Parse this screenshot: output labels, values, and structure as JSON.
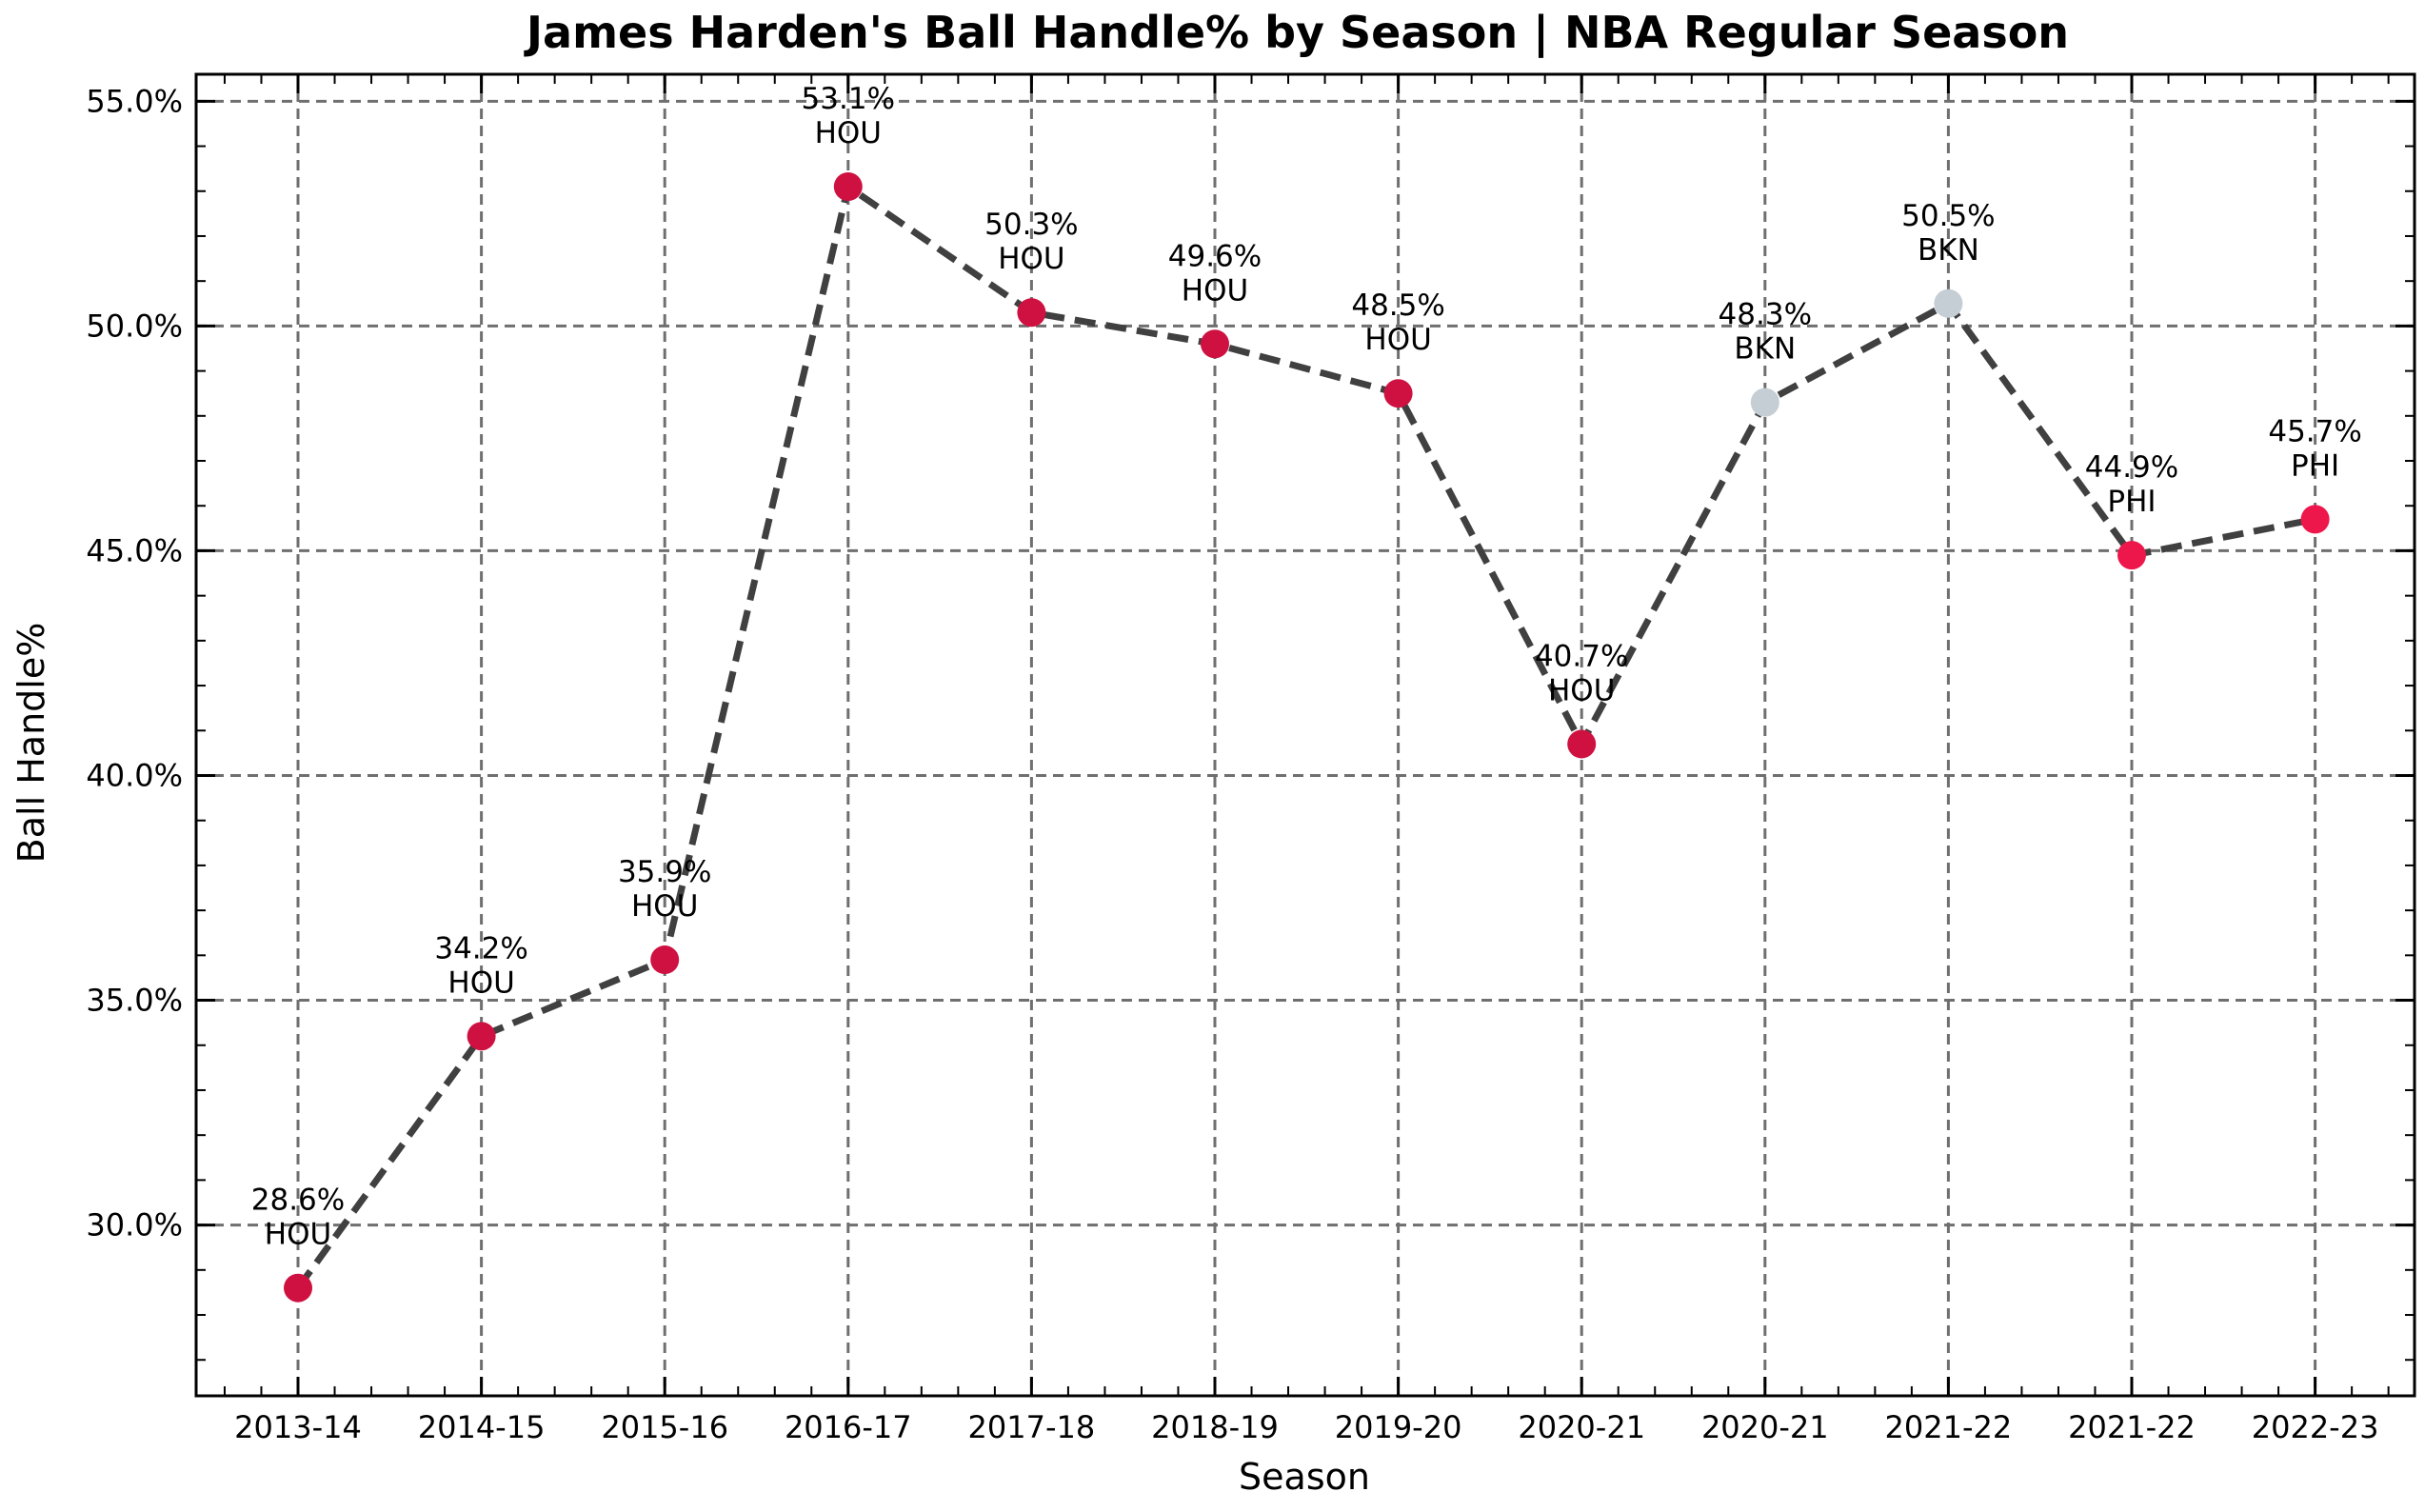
{
  "chart_data": {
    "type": "line",
    "title": "James Harden's Ball Handle% by Season | NBA Regular Season",
    "xlabel": "Season",
    "ylabel": "Ball Handle%",
    "ylim": [
      26.2,
      55.6
    ],
    "yticks": [
      30,
      35,
      40,
      45,
      50,
      55
    ],
    "ytick_labels": [
      "30.0%",
      "35.0%",
      "40.0%",
      "45.0%",
      "50.0%",
      "55.0%"
    ],
    "grid": true,
    "line_style": "dashed",
    "line_color": "#404040",
    "team_colors": {
      "HOU": "#CE1141",
      "BKN": "#C4CED4",
      "PHI": "#ED174C"
    },
    "categories": [
      "2013-14",
      "2014-15",
      "2015-16",
      "2016-17",
      "2017-18",
      "2018-19",
      "2019-20",
      "2020-21",
      "2020-21",
      "2021-22",
      "2021-22",
      "2022-23"
    ],
    "points": [
      {
        "season": "2013-14",
        "value": 28.6,
        "value_label": "28.6%",
        "team": "HOU"
      },
      {
        "season": "2014-15",
        "value": 34.2,
        "value_label": "34.2%",
        "team": "HOU"
      },
      {
        "season": "2015-16",
        "value": 35.9,
        "value_label": "35.9%",
        "team": "HOU"
      },
      {
        "season": "2016-17",
        "value": 53.1,
        "value_label": "53.1%",
        "team": "HOU"
      },
      {
        "season": "2017-18",
        "value": 50.3,
        "value_label": "50.3%",
        "team": "HOU"
      },
      {
        "season": "2018-19",
        "value": 49.6,
        "value_label": "49.6%",
        "team": "HOU"
      },
      {
        "season": "2019-20",
        "value": 48.5,
        "value_label": "48.5%",
        "team": "HOU"
      },
      {
        "season": "2020-21",
        "value": 40.7,
        "value_label": "40.7%",
        "team": "HOU"
      },
      {
        "season": "2020-21",
        "value": 48.3,
        "value_label": "48.3%",
        "team": "BKN"
      },
      {
        "season": "2021-22",
        "value": 50.5,
        "value_label": "50.5%",
        "team": "BKN"
      },
      {
        "season": "2021-22",
        "value": 44.9,
        "value_label": "44.9%",
        "team": "PHI"
      },
      {
        "season": "2022-23",
        "value": 45.7,
        "value_label": "45.7%",
        "team": "PHI"
      }
    ]
  }
}
